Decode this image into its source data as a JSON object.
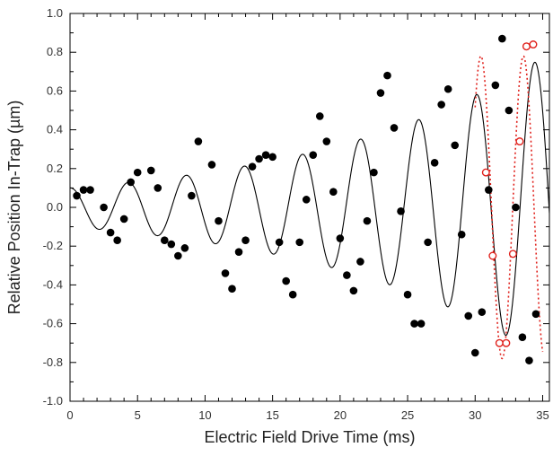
{
  "chart_data": {
    "type": "scatter",
    "title": "",
    "xlabel": "Electric Field Drive Time (ms)",
    "ylabel": "Relative Position In-Trap (µm)",
    "xlim": [
      0,
      35.5
    ],
    "ylim": [
      -1.0,
      1.0
    ],
    "xticks": [
      0,
      5,
      10,
      15,
      20,
      25,
      30,
      35
    ],
    "xtick_labels": [
      "0",
      "5",
      "10",
      "15",
      "20",
      "25",
      "30",
      "35"
    ],
    "yticks": [
      1.0,
      0.8,
      0.6,
      0.4,
      0.2,
      0.0,
      -0.2,
      -0.4,
      -0.6,
      -0.8,
      -1.0
    ],
    "ytick_labels": [
      "1.0",
      "0.8",
      "0.6",
      "0.4",
      "0.2",
      "0.0",
      "-0.2",
      "-0.4",
      "-0.6",
      "-0.8",
      "-1.0"
    ],
    "grid": false,
    "legend": "none",
    "series": [
      {
        "style": "filled-circles",
        "color": "#000000",
        "points": [
          [
            0.5,
            0.06
          ],
          [
            1.0,
            0.09
          ],
          [
            1.5,
            0.09
          ],
          [
            2.5,
            0.0
          ],
          [
            3.0,
            -0.13
          ],
          [
            3.5,
            -0.17
          ],
          [
            4.0,
            -0.06
          ],
          [
            4.5,
            0.13
          ],
          [
            5.0,
            0.18
          ],
          [
            6.0,
            0.19
          ],
          [
            6.5,
            0.1
          ],
          [
            7.0,
            -0.17
          ],
          [
            7.5,
            -0.19
          ],
          [
            8.0,
            -0.25
          ],
          [
            8.5,
            -0.21
          ],
          [
            9.0,
            0.06
          ],
          [
            9.5,
            0.34
          ],
          [
            10.5,
            0.22
          ],
          [
            11.0,
            -0.07
          ],
          [
            11.5,
            -0.34
          ],
          [
            12.0,
            -0.42
          ],
          [
            12.5,
            -0.23
          ],
          [
            13.0,
            -0.17
          ],
          [
            13.5,
            0.21
          ],
          [
            14.0,
            0.25
          ],
          [
            14.5,
            0.27
          ],
          [
            15.0,
            0.26
          ],
          [
            15.5,
            -0.18
          ],
          [
            16.0,
            -0.38
          ],
          [
            16.5,
            -0.45
          ],
          [
            17.0,
            -0.18
          ],
          [
            17.5,
            0.04
          ],
          [
            18.0,
            0.27
          ],
          [
            18.5,
            0.47
          ],
          [
            19.0,
            0.34
          ],
          [
            19.5,
            0.08
          ],
          [
            20.0,
            -0.16
          ],
          [
            20.5,
            -0.35
          ],
          [
            21.0,
            -0.43
          ],
          [
            21.5,
            -0.28
          ],
          [
            22.0,
            -0.07
          ],
          [
            22.5,
            0.18
          ],
          [
            23.0,
            0.59
          ],
          [
            23.5,
            0.68
          ],
          [
            24.0,
            0.41
          ],
          [
            24.5,
            -0.02
          ],
          [
            25.0,
            -0.45
          ],
          [
            25.5,
            -0.6
          ],
          [
            26.0,
            -0.6
          ],
          [
            26.5,
            -0.18
          ],
          [
            27.0,
            0.23
          ],
          [
            27.5,
            0.53
          ],
          [
            28.0,
            0.61
          ],
          [
            28.5,
            0.32
          ],
          [
            29.0,
            -0.14
          ],
          [
            29.5,
            -0.56
          ],
          [
            30.0,
            -0.75
          ],
          [
            30.5,
            -0.54
          ],
          [
            31.0,
            0.09
          ],
          [
            31.5,
            0.63
          ],
          [
            32.0,
            0.87
          ],
          [
            32.5,
            0.5
          ],
          [
            33.0,
            0.0
          ],
          [
            33.5,
            -0.67
          ],
          [
            34.0,
            -0.79
          ],
          [
            34.5,
            -0.55
          ]
        ]
      },
      {
        "style": "open-circles",
        "color": "#e0201b",
        "points": [
          [
            30.8,
            0.18
          ],
          [
            31.3,
            -0.25
          ],
          [
            31.8,
            -0.7
          ],
          [
            32.3,
            -0.7
          ],
          [
            32.8,
            -0.24
          ],
          [
            33.3,
            0.34
          ],
          [
            33.8,
            0.83
          ],
          [
            34.3,
            0.84
          ]
        ]
      }
    ],
    "fits": [
      {
        "style": "solid",
        "color": "#000000",
        "x_range": [
          0,
          35.5
        ],
        "model": "A0 * exp(t/tau) * cos(2*pi*t/T)",
        "A0": 0.1,
        "tau": 17.1,
        "period_ms": 4.3
      },
      {
        "style": "dotted",
        "color": "#e0201b",
        "x_range": [
          30,
          35
        ],
        "model": "A * cos(2*pi*t/T + phi)",
        "A": 0.78,
        "period_ms": 3.15,
        "phase_ref_ms": 32.0,
        "phase": "min at 32.0"
      }
    ]
  }
}
